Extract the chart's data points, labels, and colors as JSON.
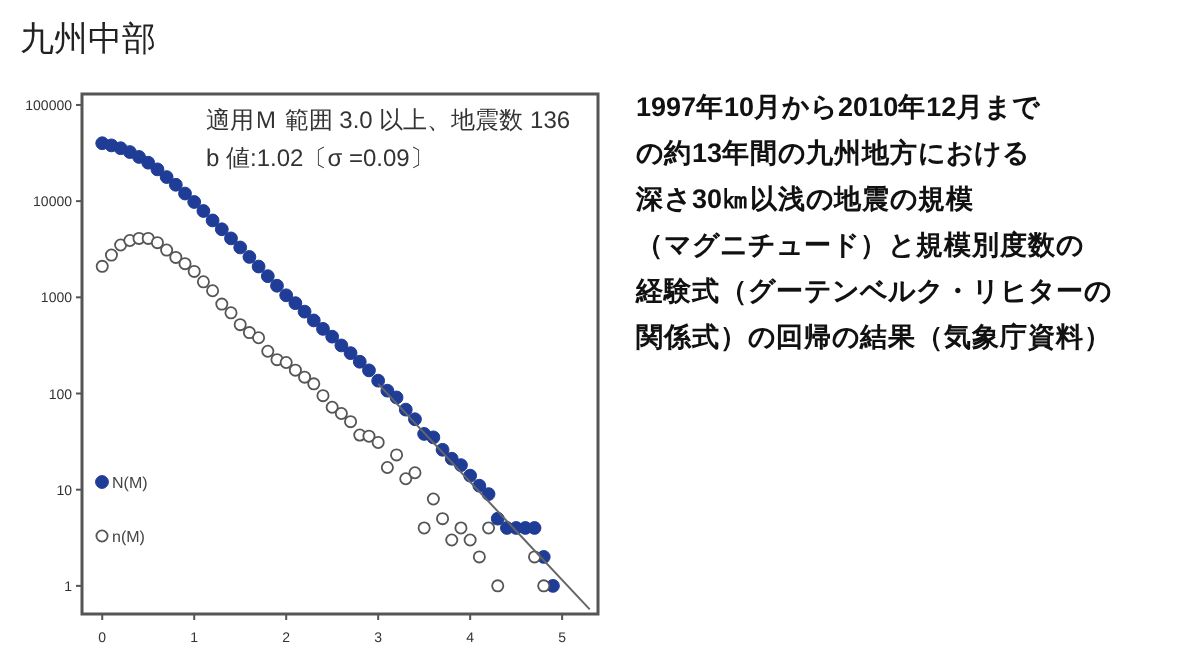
{
  "chart_data": {
    "type": "scatter",
    "title": "九州中部",
    "annotations": [
      "適用Ｍ 範囲 3.0 以上、地震数 136",
      "b 値:1.02〔σ =0.09〕",
      "1997年10月から2010年12月まで",
      "の約13年間の九州地方における",
      "深さ30㎞以浅の地震の規模",
      "（マグニチュード）と規模別度数の",
      "経験式（グーテンベルク・リヒターの",
      "関係式）の回帰の結果（気象庁資料）"
    ],
    "x": [
      0,
      0.1,
      0.2,
      0.3,
      0.4,
      0.5,
      0.6,
      0.7,
      0.8,
      0.9,
      1.0,
      1.1,
      1.2,
      1.3,
      1.4,
      1.5,
      1.6,
      1.7,
      1.8,
      1.9,
      2.0,
      2.1,
      2.2,
      2.3,
      2.4,
      2.5,
      2.6,
      2.7,
      2.8,
      2.9,
      3.0,
      3.1,
      3.2,
      3.3,
      3.4,
      3.5,
      3.6,
      3.7,
      3.8,
      3.9,
      4.0,
      4.1,
      4.2,
      4.3,
      4.4,
      4.5,
      4.6,
      4.7,
      4.8,
      4.9
    ],
    "series": [
      {
        "name": "N(M)",
        "color": "#1f3c96",
        "marker": "circle",
        "values": [
          40000,
          38000,
          35500,
          32400,
          28800,
          25100,
          21400,
          17800,
          14800,
          12000,
          9800,
          7900,
          6300,
          5100,
          4100,
          3300,
          2630,
          2090,
          1660,
          1320,
          1050,
          870,
          710,
          575,
          470,
          390,
          316,
          263,
          214,
          174,
          136,
          107,
          91,
          68,
          54,
          38,
          35,
          26,
          21,
          18,
          14,
          11,
          9,
          5,
          4,
          4,
          4,
          4,
          2,
          1
        ]
      },
      {
        "name": "n(M)",
        "color": "#555555",
        "marker": "circle",
        "values": [
          2100,
          2750,
          3500,
          3900,
          4100,
          4100,
          3700,
          3100,
          2600,
          2240,
          1860,
          1450,
          1170,
          850,
          690,
          520,
          430,
          380,
          275,
          225,
          210,
          175,
          148,
          126,
          95,
          72,
          62,
          51,
          37,
          36,
          31,
          17,
          23,
          13,
          15,
          4,
          8,
          5,
          3,
          4,
          3,
          2,
          4,
          1,
          null,
          null,
          null,
          2,
          1,
          null
        ]
      },
      {
        "type": "line",
        "color": "#666666",
        "x": [
          3.0,
          5.3
        ],
        "values": [
          126,
          0.57
        ]
      }
    ],
    "log": "y",
    "legend": "bottom left",
    "xlim": [
      -0.22,
      5.39
    ],
    "ylim": [
      0.51,
      130000
    ],
    "xticks": [
      0,
      1,
      2,
      3,
      4,
      5
    ],
    "yticks": [
      1,
      10,
      100,
      1000,
      10000,
      100000
    ]
  }
}
